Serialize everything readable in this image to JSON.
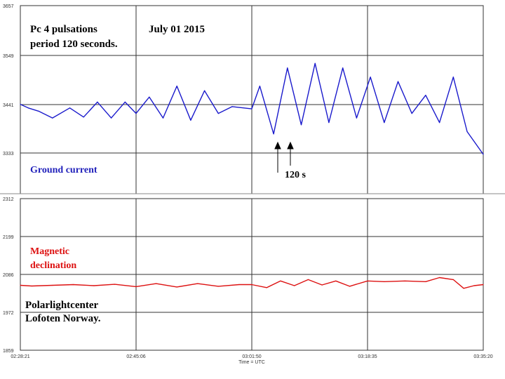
{
  "chart_data": [
    {
      "type": "line",
      "panel": "upper",
      "ylim": [
        3333,
        3657
      ],
      "y_ticks": [
        "3657",
        "3549",
        "3441",
        "3333"
      ],
      "x_ticks": [
        "02:28:21",
        "02:45:06",
        "03:01:50",
        "03:18:35",
        "03:35:20"
      ],
      "color": "#1a1acc",
      "series": [
        {
          "name": "Ground current",
          "x": [
            "02:28:21",
            "02:29:30",
            "02:31:00",
            "02:33:00",
            "02:35:30",
            "02:37:30",
            "02:39:30",
            "02:41:30",
            "02:43:30",
            "02:45:06",
            "02:47:00",
            "02:49:00",
            "02:51:00",
            "02:53:00",
            "02:55:00",
            "02:57:00",
            "02:59:00",
            "03:01:50",
            "03:03:00",
            "03:05:00",
            "03:07:00",
            "03:09:00",
            "03:11:00",
            "03:13:00",
            "03:15:00",
            "03:17:00",
            "03:19:00",
            "03:21:00",
            "03:23:00",
            "03:25:00",
            "03:27:00",
            "03:29:00",
            "03:31:00",
            "03:33:00",
            "03:35:20"
          ],
          "values": [
            3440,
            3432,
            3425,
            3410,
            3432,
            3412,
            3445,
            3410,
            3445,
            3420,
            3456,
            3410,
            3480,
            3405,
            3470,
            3420,
            3435,
            3430,
            3480,
            3375,
            3520,
            3395,
            3530,
            3400,
            3520,
            3410,
            3500,
            3400,
            3490,
            3420,
            3460,
            3400,
            3500,
            3380,
            3330
          ]
        }
      ],
      "annotations": {
        "title_line1": "Pc 4  pulsations",
        "title_line2": "period 120 seconds.",
        "date": "July 01 2015",
        "period_label": "120 s"
      }
    },
    {
      "type": "line",
      "panel": "lower",
      "ylim": [
        1859,
        2312
      ],
      "y_ticks": [
        "2312",
        "2199",
        "2086",
        "1972",
        "1859"
      ],
      "x_ticks": [
        "02:28:21",
        "02:45:06",
        "03:01:50",
        "03:18:35",
        "03:35:20"
      ],
      "xlabel": "Time = UTC",
      "color": "#dd1111",
      "series": [
        {
          "name": "Magnetic declination",
          "x": [
            "02:28:21",
            "02:30:00",
            "02:33:00",
            "02:36:00",
            "02:39:00",
            "02:42:00",
            "02:45:06",
            "02:48:00",
            "02:51:00",
            "02:54:00",
            "02:57:00",
            "03:00:00",
            "03:01:50",
            "03:04:00",
            "03:06:00",
            "03:08:00",
            "03:10:00",
            "03:12:00",
            "03:14:00",
            "03:16:00",
            "03:18:35",
            "03:21:00",
            "03:24:00",
            "03:27:00",
            "03:29:00",
            "03:31:00",
            "03:32:30",
            "03:34:00",
            "03:35:20"
          ],
          "values": [
            2053,
            2051,
            2053,
            2055,
            2052,
            2056,
            2049,
            2058,
            2048,
            2058,
            2050,
            2055,
            2055,
            2046,
            2066,
            2052,
            2070,
            2054,
            2066,
            2050,
            2066,
            2064,
            2066,
            2064,
            2076,
            2070,
            2044,
            2052,
            2055
          ]
        }
      ],
      "annotations": {
        "location_line1": "Polarlightcenter",
        "location_line2": "Lofoten Norway."
      }
    }
  ]
}
